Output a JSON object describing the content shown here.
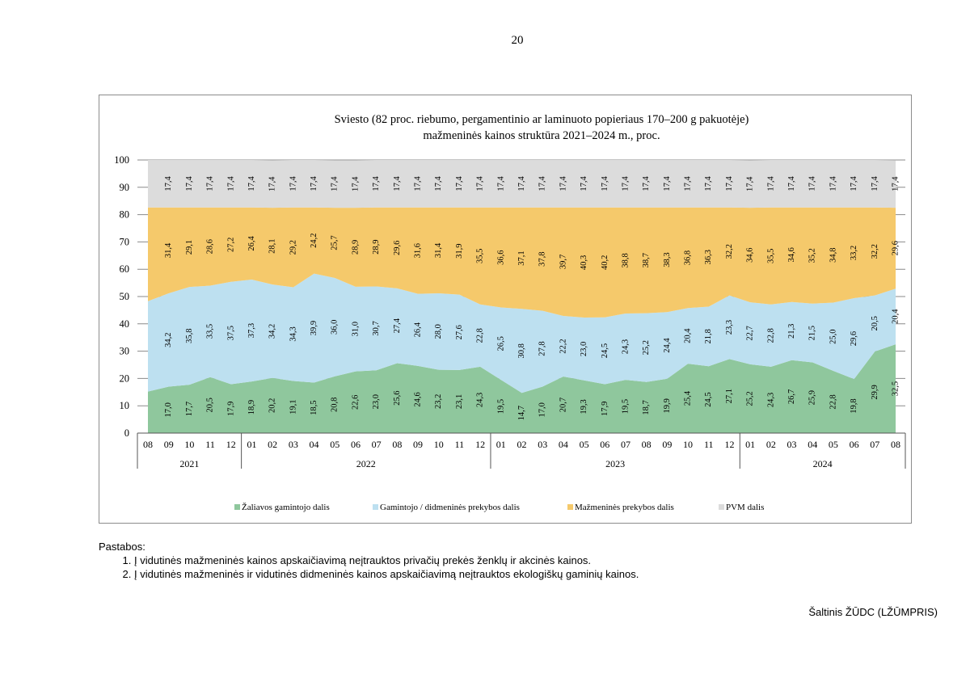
{
  "page": {
    "number": "20"
  },
  "chart_data": {
    "type": "area",
    "stacked": true,
    "title_line1": "Sviesto (82 proc. riebumo, pergamentinio ar laminuoto popieriaus 170–200 g pakuotėje)",
    "title_line2": "mažmeninės kainos struktūra 2021–2024 m., proc.",
    "ylim": [
      0,
      100
    ],
    "yticks": [
      "0",
      "10",
      "20",
      "30",
      "40",
      "50",
      "60",
      "70",
      "80",
      "90",
      "100"
    ],
    "months": [
      "08",
      "09",
      "10",
      "11",
      "12",
      "01",
      "02",
      "03",
      "04",
      "05",
      "06",
      "07",
      "08",
      "09",
      "10",
      "11",
      "12",
      "01",
      "02",
      "03",
      "04",
      "05",
      "06",
      "07",
      "08",
      "09",
      "10",
      "11",
      "12",
      "01",
      "02",
      "03",
      "04",
      "05",
      "06",
      "07",
      "08"
    ],
    "years": [
      {
        "label": "2021",
        "count": 5
      },
      {
        "label": "2022",
        "count": 12
      },
      {
        "label": "2023",
        "count": 12
      },
      {
        "label": "2024",
        "count": 8
      }
    ],
    "series": [
      {
        "name": "Žaliavos gamintojo dalis",
        "color": "#8fc79d",
        "values": [
          15.2,
          17.0,
          17.7,
          20.5,
          17.9,
          18.9,
          20.2,
          19.1,
          18.5,
          20.8,
          22.6,
          23.0,
          25.6,
          24.6,
          23.2,
          23.1,
          24.3,
          19.5,
          14.7,
          17.0,
          20.7,
          19.3,
          17.9,
          19.5,
          18.7,
          19.9,
          25.4,
          24.5,
          27.1,
          25.2,
          24.3,
          26.7,
          25.9,
          22.8,
          19.8,
          29.9,
          32.5
        ],
        "labels": [
          "",
          "17,0",
          "17,7",
          "20,5",
          "17,9",
          "18,9",
          "20,2",
          "19,1",
          "18,5",
          "20,8",
          "22,6",
          "23,0",
          "25,6",
          "24,6",
          "23,2",
          "23,1",
          "24,3",
          "19,5",
          "14,7",
          "17,0",
          "20,7",
          "19,3",
          "17,9",
          "19,5",
          "18,7",
          "19,9",
          "25,4",
          "24,5",
          "27,1",
          "25,2",
          "24,3",
          "26,7",
          "25,9",
          "22,8",
          "19,8",
          "29,9",
          "32,5"
        ]
      },
      {
        "name": "Gamintojo / didmeninės prekybos dalis",
        "color": "#bde0f0",
        "values": [
          33.1,
          34.2,
          35.8,
          33.5,
          37.5,
          37.3,
          34.2,
          34.3,
          39.9,
          36.0,
          31.0,
          30.7,
          27.4,
          26.4,
          28.0,
          27.6,
          22.8,
          26.5,
          30.8,
          27.8,
          22.2,
          23.0,
          24.5,
          24.3,
          25.2,
          24.4,
          20.4,
          21.8,
          23.3,
          22.7,
          22.8,
          21.3,
          21.5,
          25.0,
          29.6,
          20.5,
          20.4
        ],
        "labels": [
          "",
          "34,2",
          "35,8",
          "33,5",
          "37,5",
          "37,3",
          "34,2",
          "34,3",
          "39,9",
          "36,0",
          "31,0",
          "30,7",
          "27,4",
          "26,4",
          "28,0",
          "27,6",
          "22,8",
          "26,5",
          "30,8",
          "27,8",
          "22,2",
          "23,0",
          "24,5",
          "24,3",
          "25,2",
          "24,4",
          "20,4",
          "21,8",
          "23,3",
          "22,7",
          "22,8",
          "21,3",
          "21,5",
          "25,0",
          "29,6",
          "20,5",
          "20,4"
        ]
      },
      {
        "name": "Mažmeninės prekybos dalis",
        "color": "#f5c96b",
        "values": [
          34.3,
          31.4,
          29.1,
          28.6,
          27.2,
          26.4,
          28.1,
          29.2,
          24.2,
          25.7,
          28.9,
          28.9,
          29.6,
          31.6,
          31.4,
          31.9,
          35.5,
          36.6,
          37.1,
          37.8,
          39.7,
          40.3,
          40.2,
          38.8,
          38.7,
          38.3,
          36.8,
          36.3,
          32.2,
          34.6,
          35.5,
          34.6,
          35.2,
          34.8,
          33.2,
          32.2,
          29.6
        ],
        "labels": [
          "",
          "31,4",
          "29,1",
          "28,6",
          "27,2",
          "26,4",
          "28,1",
          "29,2",
          "24,2",
          "25,7",
          "28,9",
          "28,9",
          "29,6",
          "31,6",
          "31,4",
          "31,9",
          "35,5",
          "36,6",
          "37,1",
          "37,8",
          "39,7",
          "40,3",
          "40,2",
          "38,8",
          "38,7",
          "38,3",
          "36,8",
          "36,3",
          "32,2",
          "34,6",
          "35,5",
          "34,6",
          "35,2",
          "34,8",
          "33,2",
          "32,2",
          "29,6"
        ]
      },
      {
        "name": "PVM dalis",
        "color": "#dcdcdc",
        "values": [
          17.4,
          17.4,
          17.4,
          17.4,
          17.4,
          17.4,
          17.4,
          17.4,
          17.4,
          17.4,
          17.4,
          17.4,
          17.4,
          17.4,
          17.4,
          17.4,
          17.4,
          17.4,
          17.4,
          17.4,
          17.4,
          17.4,
          17.4,
          17.4,
          17.4,
          17.4,
          17.4,
          17.4,
          17.4,
          17.4,
          17.4,
          17.4,
          17.4,
          17.4,
          17.4,
          17.4,
          17.4
        ],
        "labels": [
          "",
          "17,4",
          "17,4",
          "17,4",
          "17,4",
          "17,4",
          "17,4",
          "17,4",
          "17,4",
          "17,4",
          "17,4",
          "17,4",
          "17,4",
          "17,4",
          "17,4",
          "17,4",
          "17,4",
          "17,4",
          "17,4",
          "17,4",
          "17,4",
          "17,4",
          "17,4",
          "17,4",
          "17,4",
          "17,4",
          "17,4",
          "17,4",
          "17,4",
          "17,4",
          "17,4",
          "17,4",
          "17,4",
          "17,4",
          "17,4",
          "17,4",
          "17,4"
        ]
      }
    ],
    "legend_position": "bottom"
  },
  "notes": {
    "heading": "Pastabos:",
    "items": [
      "Į vidutinės mažmeninės kainos apskaičiavimą neįtrauktos privačių prekės ženklų ir akcinės kainos.",
      "Į vidutinės mažmeninės ir vidutinės didmeninės kainos apskaičiavimą neįtrauktos ekologiškų gaminių kainos."
    ]
  },
  "source": "Šaltinis ŽŪDC (LŽŪMPRIS)"
}
